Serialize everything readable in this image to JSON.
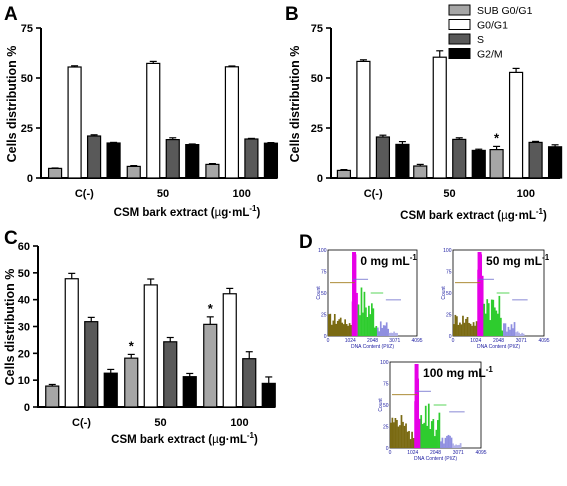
{
  "chart_data": [
    {
      "type": "bar",
      "panel": "A",
      "categories": [
        "C(-)",
        "50",
        "100"
      ],
      "ylabel": "Cells distribution %",
      "xlabel_parts": [
        "CSM bark extract (",
        "µ",
        "g·mL",
        "-1",
        ")"
      ],
      "ylim": [
        0,
        75
      ],
      "yticks": [
        0,
        25,
        50,
        75
      ],
      "series": [
        {
          "name": "SUB G0/G1",
          "color": "#a6a6a6",
          "values": [
            4.8,
            5.8,
            6.8
          ],
          "errors": [
            0.2,
            0.4,
            0.4
          ]
        },
        {
          "name": "G0/G1",
          "color": "#ffffff",
          "values": [
            55.5,
            57.3,
            55.6
          ],
          "errors": [
            0.6,
            1.0,
            0.4
          ]
        },
        {
          "name": "S",
          "color": "#595959",
          "values": [
            21.0,
            19.2,
            19.5
          ],
          "errors": [
            0.6,
            0.9,
            0.3
          ]
        },
        {
          "name": "G2/M",
          "color": "#000000",
          "values": [
            17.5,
            16.7,
            17.4
          ],
          "errors": [
            0.3,
            0.3,
            0.3
          ]
        }
      ],
      "annotations": []
    },
    {
      "type": "bar",
      "panel": "B",
      "categories": [
        "C(-)",
        "50",
        "100"
      ],
      "ylabel": "Cells distribution %",
      "xlabel_parts": [
        "CSM bark extract (",
        "µ",
        "g·mL",
        "-1",
        ")"
      ],
      "ylim": [
        0,
        75
      ],
      "yticks": [
        0,
        25,
        50,
        75
      ],
      "series": [
        {
          "name": "SUB G0/G1",
          "color": "#a6a6a6",
          "values": [
            3.8,
            6.0,
            14.2
          ],
          "errors": [
            0.4,
            0.8,
            1.6
          ]
        },
        {
          "name": "G0/G1",
          "color": "#ffffff",
          "values": [
            58.3,
            60.4,
            52.8
          ],
          "errors": [
            0.8,
            3.2,
            2.0
          ]
        },
        {
          "name": "S",
          "color": "#595959",
          "values": [
            20.5,
            19.3,
            17.8
          ],
          "errors": [
            0.9,
            0.8,
            0.5
          ]
        },
        {
          "name": "G2/M",
          "color": "#000000",
          "values": [
            16.8,
            13.8,
            15.6
          ],
          "errors": [
            1.4,
            0.6,
            1.0
          ]
        }
      ],
      "annotations": [
        {
          "text": "*",
          "category": 2,
          "series": 0
        }
      ]
    },
    {
      "type": "bar",
      "panel": "C",
      "categories": [
        "C(-)",
        "50",
        "100"
      ],
      "ylabel": "Cells distribution %",
      "xlabel_parts": [
        "CSM bark extract (",
        "µ",
        "g·mL",
        "-1",
        ")"
      ],
      "ylim": [
        0,
        60
      ],
      "yticks": [
        0,
        10,
        20,
        30,
        40,
        50,
        60
      ],
      "series": [
        {
          "name": "SUB G0/G1",
          "color": "#a6a6a6",
          "values": [
            7.8,
            18.2,
            30.8
          ],
          "errors": [
            0.6,
            1.4,
            2.8
          ]
        },
        {
          "name": "G0/G1",
          "color": "#ffffff",
          "values": [
            47.8,
            45.5,
            42.2
          ],
          "errors": [
            2.0,
            2.2,
            2.0
          ]
        },
        {
          "name": "S",
          "color": "#595959",
          "values": [
            31.8,
            24.3,
            18.0
          ],
          "errors": [
            1.6,
            1.6,
            2.6
          ]
        },
        {
          "name": "G2/M",
          "color": "#000000",
          "values": [
            12.6,
            11.3,
            8.8
          ],
          "errors": [
            1.4,
            1.2,
            2.4
          ]
        }
      ],
      "annotations": [
        {
          "text": "*",
          "category": 1,
          "series": 0
        },
        {
          "text": "*",
          "category": 2,
          "series": 0
        }
      ]
    }
  ],
  "panel_labels": {
    "a": "A",
    "b": "B",
    "c": "C",
    "d": "D"
  },
  "legend": {
    "items": [
      {
        "name": "SUB G0/G1",
        "color": "#a6a6a6"
      },
      {
        "name": "G0/G1",
        "color": "#ffffff"
      },
      {
        "name": "S",
        "color": "#595959"
      },
      {
        "name": "G2/M",
        "color": "#000000"
      }
    ]
  },
  "flow_panels": [
    {
      "title_main": "0 mg mL",
      "title_sup": "-1"
    },
    {
      "title_main": "50 mg mL",
      "title_sup": "-1"
    },
    {
      "title_main": "100 mg mL",
      "title_sup": "-1"
    }
  ],
  "flow_axis": {
    "xlabel": "DNA Content (PI/Z)",
    "ylabel": "Count",
    "xticks": [
      "0",
      "1024",
      "2048",
      "3071",
      "4095"
    ],
    "yticks": [
      "100",
      "75",
      "50",
      "25",
      "0"
    ]
  },
  "colors": {
    "magenta": "#e600e6",
    "green": "#2ecc2e",
    "olive": "#7a6a12",
    "blue_gate": "#6a6acc",
    "gate": "#a07c1a"
  }
}
